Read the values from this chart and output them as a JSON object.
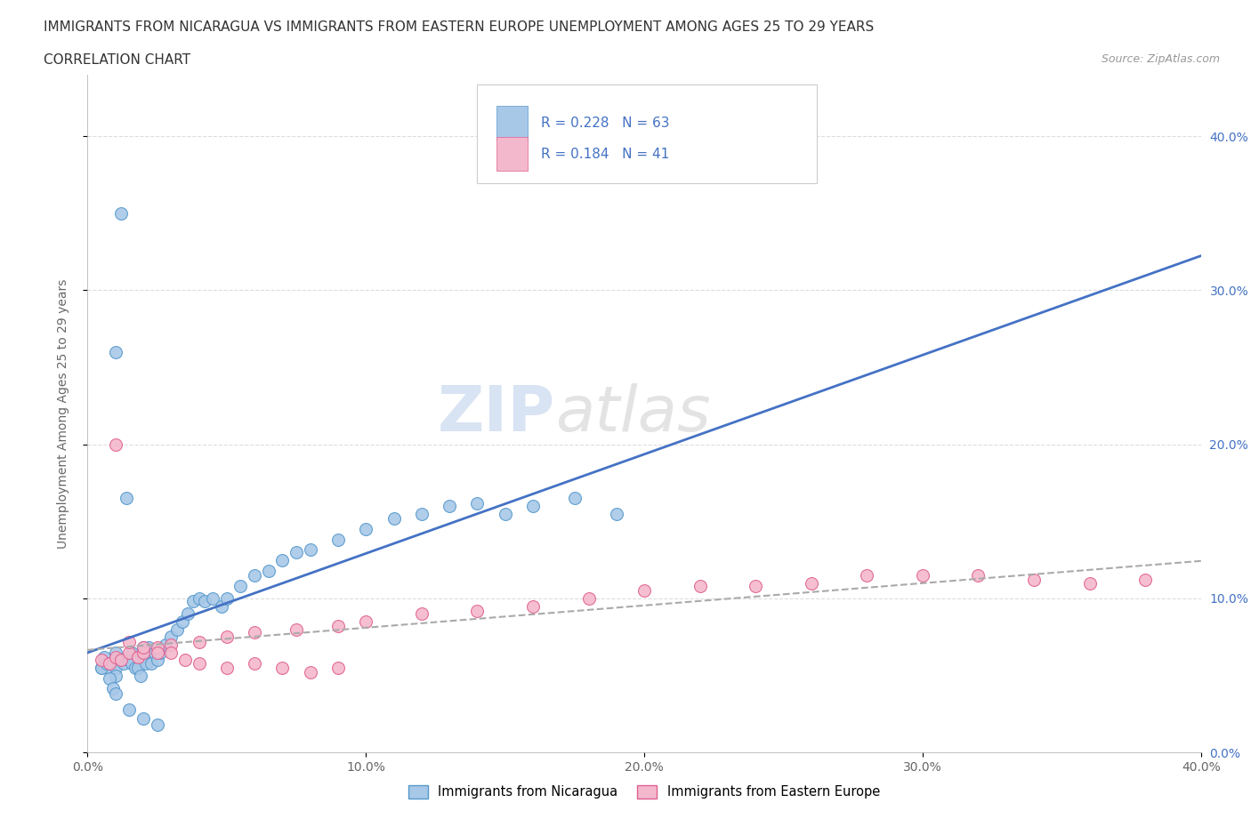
{
  "title_line1": "IMMIGRANTS FROM NICARAGUA VS IMMIGRANTS FROM EASTERN EUROPE UNEMPLOYMENT AMONG AGES 25 TO 29 YEARS",
  "title_line2": "CORRELATION CHART",
  "source_text": "Source: ZipAtlas.com",
  "ylabel": "Unemployment Among Ages 25 to 29 years",
  "xlim": [
    0.0,
    0.4
  ],
  "ylim": [
    0.0,
    0.44
  ],
  "xticks": [
    0.0,
    0.1,
    0.2,
    0.3,
    0.4
  ],
  "yticks": [
    0.0,
    0.1,
    0.2,
    0.3,
    0.4
  ],
  "nicaragua_color": "#a8c8e8",
  "nicaragua_edge_color": "#5599cc",
  "eastern_europe_color": "#f4b8cc",
  "eastern_europe_edge_color": "#e06090",
  "line_nicaragua_color": "#4472c4",
  "line_eastern_color": "#aaaaaa",
  "R_nicaragua": 0.228,
  "N_nicaragua": 63,
  "R_eastern": 0.184,
  "N_eastern": 41,
  "legend_label_nicaragua": "Immigrants from Nicaragua",
  "legend_label_eastern": "Immigrants from Eastern Europe",
  "watermark_part1": "ZIP",
  "watermark_part2": "atlas",
  "nic_x": [
    0.005,
    0.008,
    0.01,
    0.01,
    0.01,
    0.01,
    0.012,
    0.013,
    0.015,
    0.015,
    0.016,
    0.016,
    0.017,
    0.018,
    0.018,
    0.019,
    0.02,
    0.02,
    0.021,
    0.022,
    0.023,
    0.024,
    0.025,
    0.026,
    0.028,
    0.03,
    0.032,
    0.034,
    0.036,
    0.038,
    0.04,
    0.042,
    0.045,
    0.048,
    0.05,
    0.055,
    0.06,
    0.065,
    0.07,
    0.075,
    0.08,
    0.09,
    0.1,
    0.11,
    0.12,
    0.13,
    0.14,
    0.15,
    0.16,
    0.175,
    0.19,
    0.01,
    0.012,
    0.014,
    0.005,
    0.006,
    0.007,
    0.008,
    0.009,
    0.01,
    0.015,
    0.02,
    0.025
  ],
  "nic_y": [
    0.055,
    0.055,
    0.065,
    0.06,
    0.055,
    0.05,
    0.06,
    0.058,
    0.06,
    0.06,
    0.065,
    0.058,
    0.055,
    0.062,
    0.055,
    0.05,
    0.068,
    0.062,
    0.058,
    0.068,
    0.058,
    0.065,
    0.06,
    0.065,
    0.07,
    0.075,
    0.08,
    0.085,
    0.09,
    0.098,
    0.1,
    0.098,
    0.1,
    0.095,
    0.1,
    0.108,
    0.115,
    0.118,
    0.125,
    0.13,
    0.132,
    0.138,
    0.145,
    0.152,
    0.155,
    0.16,
    0.162,
    0.155,
    0.16,
    0.165,
    0.155,
    0.26,
    0.35,
    0.165,
    0.055,
    0.062,
    0.058,
    0.048,
    0.042,
    0.038,
    0.028,
    0.022,
    0.018
  ],
  "east_x": [
    0.005,
    0.008,
    0.01,
    0.012,
    0.015,
    0.018,
    0.02,
    0.025,
    0.03,
    0.04,
    0.05,
    0.06,
    0.075,
    0.09,
    0.1,
    0.12,
    0.14,
    0.16,
    0.18,
    0.2,
    0.22,
    0.24,
    0.26,
    0.28,
    0.3,
    0.32,
    0.34,
    0.36,
    0.38,
    0.01,
    0.015,
    0.02,
    0.025,
    0.03,
    0.035,
    0.04,
    0.05,
    0.06,
    0.07,
    0.08,
    0.09
  ],
  "east_y": [
    0.06,
    0.058,
    0.062,
    0.06,
    0.065,
    0.062,
    0.065,
    0.068,
    0.07,
    0.072,
    0.075,
    0.078,
    0.08,
    0.082,
    0.085,
    0.09,
    0.092,
    0.095,
    0.1,
    0.105,
    0.108,
    0.108,
    0.11,
    0.115,
    0.115,
    0.115,
    0.112,
    0.11,
    0.112,
    0.2,
    0.072,
    0.068,
    0.065,
    0.065,
    0.06,
    0.058,
    0.055,
    0.058,
    0.055,
    0.052,
    0.055
  ]
}
